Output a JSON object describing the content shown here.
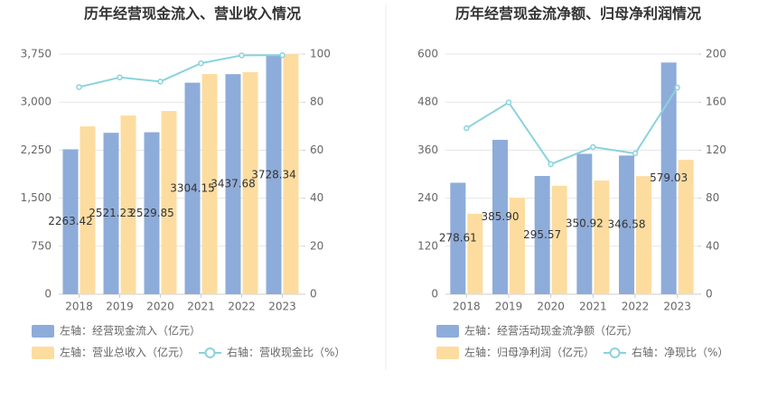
{
  "chart_data": [
    {
      "type": "bar",
      "title": "历年经营现金流入、营业收入情况",
      "categories": [
        "2018",
        "2019",
        "2020",
        "2021",
        "2022",
        "2023"
      ],
      "series": [
        {
          "name": "左轴：经营现金流入（亿元）",
          "type": "bar",
          "color": "#8eacd9",
          "values": [
            2263.42,
            2521.23,
            2529.85,
            3304.15,
            3437.68,
            3728.34
          ],
          "value_labels": [
            "2263.42",
            "2521.23",
            "2529.85",
            "3304.15",
            "3437.68",
            "3728.34"
          ]
        },
        {
          "name": "左轴：营业总收入（亿元）",
          "type": "bar",
          "color": "#fddca0",
          "values": [
            2622,
            2791,
            2862,
            3440,
            3468,
            3750
          ]
        },
        {
          "name": "右轴：营收现金比（%）",
          "type": "line",
          "axis": "y2",
          "color": "#8ad3dc",
          "values": [
            86.3,
            90.3,
            88.6,
            96.2,
            99.5,
            99.6
          ]
        }
      ],
      "ylim": [
        0,
        3750
      ],
      "yticks": [
        0,
        750,
        {
          "value": 1500,
          "label": "1,500"
        },
        {
          "value": 2250,
          "label": "2,250"
        },
        {
          "value": 3000,
          "label": "3,000"
        },
        {
          "value": 3750,
          "label": "3,750"
        }
      ],
      "y2lim": [
        0,
        100
      ],
      "y2ticks": [
        0,
        20,
        40,
        60,
        80,
        100
      ],
      "grid": true
    },
    {
      "type": "bar",
      "title": "历年经营现金流净额、归母净利润情况",
      "categories": [
        "2018",
        "2019",
        "2020",
        "2021",
        "2022",
        "2023"
      ],
      "series": [
        {
          "name": "左轴：经营活动现金流净额（亿元）",
          "type": "bar",
          "color": "#8eacd9",
          "values": [
            278.61,
            385.9,
            295.57,
            350.92,
            346.58,
            579.03
          ],
          "value_labels": [
            "278.61",
            "385.90",
            "295.57",
            "350.92",
            "346.58",
            "579.03"
          ]
        },
        {
          "name": "左轴：归母净利润（亿元）",
          "type": "bar",
          "color": "#fddca0",
          "values": [
            201,
            241,
            271,
            284,
            295,
            336
          ]
        },
        {
          "name": "右轴：净现比（%）",
          "type": "line",
          "axis": "y2",
          "color": "#8ad3dc",
          "values": [
            138.3,
            159.8,
            108.3,
            122.6,
            117.3,
            172.2
          ]
        }
      ],
      "ylim": [
        0,
        600
      ],
      "yticks": [
        0,
        120,
        240,
        360,
        480,
        600
      ],
      "y2lim": [
        0,
        200
      ],
      "y2ticks": [
        0,
        40,
        80,
        120,
        160,
        200
      ],
      "grid": true
    }
  ]
}
